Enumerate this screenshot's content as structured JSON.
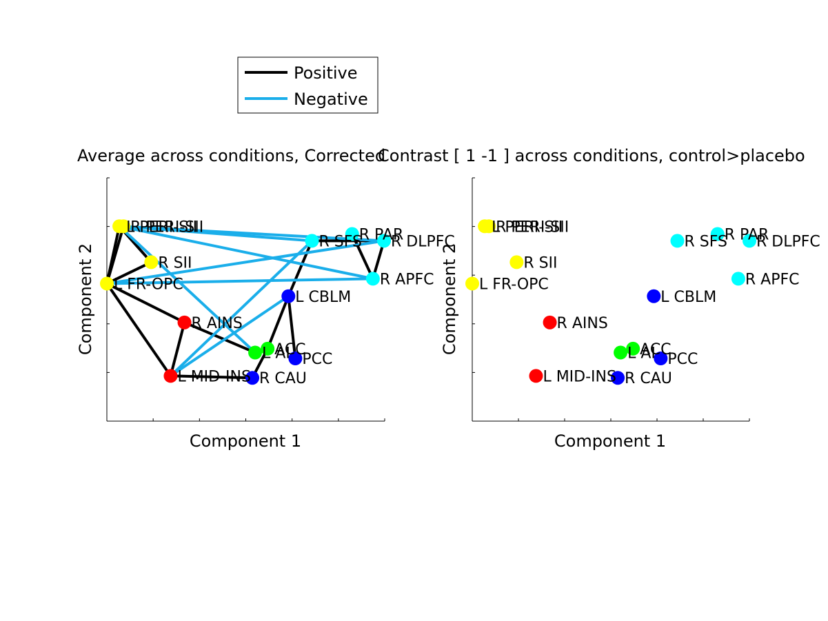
{
  "chart_data": [
    {
      "type": "scatter",
      "title": "Average across conditions, Corrected",
      "xlabel": "Component 1",
      "ylabel": "Component 2",
      "grid": false,
      "legend": {
        "placement": "top",
        "entries": [
          {
            "name": "Positive",
            "color": "#000000"
          },
          {
            "name": "Negative",
            "color": "#1aaeea"
          }
        ]
      },
      "nodes": [
        {
          "label": "R PERI-SII",
          "x": 0.06,
          "y": 0.875,
          "color": "#ffff00"
        },
        {
          "label": "L PERI-SII",
          "x": 0.045,
          "y": 0.875,
          "color": "#ffff00"
        },
        {
          "label": "R SII",
          "x": 0.16,
          "y": 0.69,
          "color": "#ffff00"
        },
        {
          "label": "L FR-OPC",
          "x": 0.0,
          "y": 0.58,
          "color": "#ffff00"
        },
        {
          "label": "R PAR",
          "x": 0.885,
          "y": 0.835,
          "color": "#00ffff"
        },
        {
          "label": "R SFS",
          "x": 0.74,
          "y": 0.8,
          "color": "#00ffff"
        },
        {
          "label": "R DLPFC",
          "x": 1.0,
          "y": 0.8,
          "color": "#00ffff"
        },
        {
          "label": "R APFC",
          "x": 0.96,
          "y": 0.605,
          "color": "#00ffff"
        },
        {
          "label": "L CBLM",
          "x": 0.655,
          "y": 0.515,
          "color": "#0000ff"
        },
        {
          "label": "R AINS",
          "x": 0.28,
          "y": 0.38,
          "color": "#ff0000"
        },
        {
          "label": "ACC",
          "x": 0.58,
          "y": 0.245,
          "color": "#00ff00"
        },
        {
          "label": "L AI",
          "x": 0.535,
          "y": 0.225,
          "color": "#00ff00"
        },
        {
          "label": "PCC",
          "x": 0.68,
          "y": 0.195,
          "color": "#0000ff"
        },
        {
          "label": "L MID-INS",
          "x": 0.23,
          "y": 0.105,
          "color": "#ff0000"
        },
        {
          "label": "R CAU",
          "x": 0.525,
          "y": 0.095,
          "color": "#0000ff"
        }
      ],
      "edges": [
        {
          "from": "L PERI-SII",
          "to": "L FR-OPC",
          "sign": "positive"
        },
        {
          "from": "R PERI-SII",
          "to": "L FR-OPC",
          "sign": "positive"
        },
        {
          "from": "L PERI-SII",
          "to": "R SII",
          "sign": "positive"
        },
        {
          "from": "R SII",
          "to": "L FR-OPC",
          "sign": "positive"
        },
        {
          "from": "L FR-OPC",
          "to": "R AINS",
          "sign": "positive"
        },
        {
          "from": "L FR-OPC",
          "to": "L MID-INS",
          "sign": "positive"
        },
        {
          "from": "R AINS",
          "to": "L MID-INS",
          "sign": "positive"
        },
        {
          "from": "R AINS",
          "to": "L AI",
          "sign": "positive"
        },
        {
          "from": "R SFS",
          "to": "R DLPFC",
          "sign": "positive"
        },
        {
          "from": "R PAR",
          "to": "R APFC",
          "sign": "positive"
        },
        {
          "from": "R DLPFC",
          "to": "R APFC",
          "sign": "positive"
        },
        {
          "from": "R SFS",
          "to": "L CBLM",
          "sign": "positive"
        },
        {
          "from": "L CBLM",
          "to": "PCC",
          "sign": "positive"
        },
        {
          "from": "L CBLM",
          "to": "ACC",
          "sign": "positive"
        },
        {
          "from": "ACC",
          "to": "R CAU",
          "sign": "positive"
        },
        {
          "from": "L MID-INS",
          "to": "R CAU",
          "sign": "positive"
        },
        {
          "from": "L PERI-SII",
          "to": "R SFS",
          "sign": "negative"
        },
        {
          "from": "L PERI-SII",
          "to": "R DLPFC",
          "sign": "negative"
        },
        {
          "from": "L PERI-SII",
          "to": "R APFC",
          "sign": "negative"
        },
        {
          "from": "L PERI-SII",
          "to": "L AI",
          "sign": "negative"
        },
        {
          "from": "L FR-OPC",
          "to": "R DLPFC",
          "sign": "negative"
        },
        {
          "from": "L FR-OPC",
          "to": "R APFC",
          "sign": "negative"
        },
        {
          "from": "L MID-INS",
          "to": "R SFS",
          "sign": "negative"
        },
        {
          "from": "L MID-INS",
          "to": "L CBLM",
          "sign": "negative"
        }
      ]
    },
    {
      "type": "scatter",
      "title": "Contrast [  1  -1 ] across conditions, control>placebo",
      "xlabel": "Component 1",
      "ylabel": "Component 2",
      "grid": false,
      "nodes": [
        {
          "label": "R PERI-SII",
          "x": 0.06,
          "y": 0.875,
          "color": "#ffff00"
        },
        {
          "label": "L PERI-SII",
          "x": 0.045,
          "y": 0.875,
          "color": "#ffff00"
        },
        {
          "label": "R SII",
          "x": 0.16,
          "y": 0.69,
          "color": "#ffff00"
        },
        {
          "label": "L FR-OPC",
          "x": 0.0,
          "y": 0.58,
          "color": "#ffff00"
        },
        {
          "label": "R PAR",
          "x": 0.885,
          "y": 0.835,
          "color": "#00ffff"
        },
        {
          "label": "R SFS",
          "x": 0.74,
          "y": 0.8,
          "color": "#00ffff"
        },
        {
          "label": "R DLPFC",
          "x": 1.0,
          "y": 0.8,
          "color": "#00ffff"
        },
        {
          "label": "R APFC",
          "x": 0.96,
          "y": 0.605,
          "color": "#00ffff"
        },
        {
          "label": "L CBLM",
          "x": 0.655,
          "y": 0.515,
          "color": "#0000ff"
        },
        {
          "label": "R AINS",
          "x": 0.28,
          "y": 0.38,
          "color": "#ff0000"
        },
        {
          "label": "ACC",
          "x": 0.58,
          "y": 0.245,
          "color": "#00ff00"
        },
        {
          "label": "L AI",
          "x": 0.535,
          "y": 0.225,
          "color": "#00ff00"
        },
        {
          "label": "PCC",
          "x": 0.68,
          "y": 0.195,
          "color": "#0000ff"
        },
        {
          "label": "L MID-INS",
          "x": 0.23,
          "y": 0.105,
          "color": "#ff0000"
        },
        {
          "label": "R CAU",
          "x": 0.525,
          "y": 0.095,
          "color": "#0000ff"
        }
      ],
      "edges": []
    }
  ]
}
